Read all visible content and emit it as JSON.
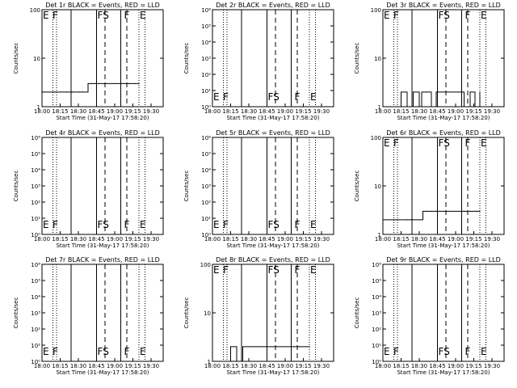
{
  "page": {
    "background": "#ffffff",
    "ink": "#000000",
    "lld_color": "#ff0000"
  },
  "chart_data": [
    {
      "type": "line",
      "scale": "log",
      "title": "Det 1r BLACK = Events, RED = LLD",
      "xlabel": "Start Time (31-May-17 17:58:20)",
      "ylabel": "Counts/sec",
      "ylim": [
        1,
        100
      ],
      "yticks": [
        {
          "v": 1,
          "label": "1"
        },
        {
          "v": 10,
          "label": "10"
        },
        {
          "v": 100,
          "label": "100"
        }
      ],
      "xlim": [
        "18:00",
        "19:40"
      ],
      "xticks": [
        "18:00",
        "18:15",
        "18:30",
        "18:45",
        "19:00",
        "19:15",
        "19:30"
      ],
      "region_labels": [
        {
          "text": "E",
          "t": "18:00"
        },
        {
          "text": "F",
          "t": "18:08"
        },
        {
          "text": "FS",
          "t": "18:45"
        },
        {
          "text": "F",
          "t": "19:07"
        },
        {
          "text": "E",
          "t": "19:20"
        }
      ],
      "series": [
        {
          "color": "#000000",
          "x": [
            "18:00",
            "18:10",
            "18:20",
            "18:25",
            "18:30",
            "18:33",
            "18:38",
            "18:41",
            "18:44",
            "19:07",
            "19:12",
            "19:17",
            "19:20"
          ],
          "y": [
            2,
            2,
            2,
            2,
            2,
            2,
            3,
            3,
            3,
            3,
            3,
            3,
            3
          ]
        }
      ]
    },
    {
      "type": "line",
      "scale": "log",
      "title": "Det 2r BLACK = Events, RED = LLD",
      "xlabel": "Start Time (31-May-17 17:58:20)",
      "ylabel": "Counts/sec",
      "ylim": [
        1,
        1000000
      ],
      "yticks": [
        {
          "v": 1,
          "label": "10⁰"
        },
        {
          "v": 10,
          "label": "10¹"
        },
        {
          "v": 100,
          "label": "10²"
        },
        {
          "v": 1000,
          "label": "10³"
        },
        {
          "v": 10000,
          "label": "10⁴"
        },
        {
          "v": 100000,
          "label": "10⁵"
        },
        {
          "v": 1000000,
          "label": "10⁶"
        }
      ],
      "xlim": [
        "18:00",
        "19:40"
      ],
      "xticks": [
        "18:00",
        "18:15",
        "18:30",
        "18:45",
        "19:00",
        "19:15",
        "19:30"
      ],
      "region_labels": [
        {
          "text": "E",
          "t": "18:00"
        },
        {
          "text": "F",
          "t": "18:08"
        },
        {
          "text": "FS",
          "t": "18:45"
        },
        {
          "text": "F",
          "t": "19:07"
        },
        {
          "text": "E",
          "t": "19:20"
        }
      ],
      "series": []
    },
    {
      "type": "line",
      "scale": "log",
      "title": "Det 3r BLACK = Events, RED = LLD",
      "xlabel": "Start Time (31-May-17 17:58:20)",
      "ylabel": "Counts/sec",
      "ylim": [
        1,
        100
      ],
      "yticks": [
        {
          "v": 1,
          "label": "1"
        },
        {
          "v": 10,
          "label": "10"
        },
        {
          "v": 100,
          "label": "100"
        }
      ],
      "xlim": [
        "18:00",
        "19:40"
      ],
      "xticks": [
        "18:00",
        "18:15",
        "18:30",
        "18:45",
        "19:00",
        "19:15",
        "19:30"
      ],
      "region_labels": [
        {
          "text": "E",
          "t": "18:00"
        },
        {
          "text": "F",
          "t": "18:08"
        },
        {
          "text": "FS",
          "t": "18:45"
        },
        {
          "text": "F",
          "t": "19:07"
        },
        {
          "text": "E",
          "t": "19:20"
        }
      ],
      "series": [
        {
          "color": "#000000",
          "x": [
            "18:10",
            "18:15",
            "18:20",
            "18:25",
            "18:30",
            "18:32",
            "18:36",
            "18:40",
            "18:44",
            "19:07",
            "19:12",
            "19:16",
            "19:20"
          ],
          "y": [
            1,
            2,
            1,
            2,
            1,
            2,
            2,
            1,
            2,
            1,
            2,
            1,
            2
          ]
        }
      ]
    },
    {
      "type": "line",
      "scale": "log",
      "title": "Det 4r BLACK = Events, RED = LLD",
      "xlabel": "Start Time (31-May-17 17:58:20)",
      "ylabel": "Counts/sec",
      "ylim": [
        1,
        1000000
      ],
      "yticks": [
        {
          "v": 1,
          "label": "10⁰"
        },
        {
          "v": 10,
          "label": "10¹"
        },
        {
          "v": 100,
          "label": "10²"
        },
        {
          "v": 1000,
          "label": "10³"
        },
        {
          "v": 10000,
          "label": "10⁴"
        },
        {
          "v": 100000,
          "label": "10⁵"
        },
        {
          "v": 1000000,
          "label": "10⁶"
        }
      ],
      "xlim": [
        "18:00",
        "19:40"
      ],
      "xticks": [
        "18:00",
        "18:15",
        "18:30",
        "18:45",
        "19:00",
        "19:15",
        "19:30"
      ],
      "region_labels": [
        {
          "text": "E",
          "t": "18:00"
        },
        {
          "text": "F",
          "t": "18:08"
        },
        {
          "text": "FS",
          "t": "18:45"
        },
        {
          "text": "F",
          "t": "19:07"
        },
        {
          "text": "E",
          "t": "19:20"
        }
      ],
      "series": []
    },
    {
      "type": "line",
      "scale": "log",
      "title": "Det 5r BLACK = Events, RED = LLD",
      "xlabel": "Start Time (31-May-17 17:58:20)",
      "ylabel": "Counts/sec",
      "ylim": [
        1,
        1000000
      ],
      "yticks": [
        {
          "v": 1,
          "label": "10⁰"
        },
        {
          "v": 10,
          "label": "10¹"
        },
        {
          "v": 100,
          "label": "10²"
        },
        {
          "v": 1000,
          "label": "10³"
        },
        {
          "v": 10000,
          "label": "10⁴"
        },
        {
          "v": 100000,
          "label": "10⁵"
        },
        {
          "v": 1000000,
          "label": "10⁶"
        }
      ],
      "xlim": [
        "18:00",
        "19:40"
      ],
      "xticks": [
        "18:00",
        "18:15",
        "18:30",
        "18:45",
        "19:00",
        "19:15",
        "19:30"
      ],
      "region_labels": [
        {
          "text": "E",
          "t": "18:00"
        },
        {
          "text": "F",
          "t": "18:08"
        },
        {
          "text": "FS",
          "t": "18:45"
        },
        {
          "text": "F",
          "t": "19:07"
        },
        {
          "text": "E",
          "t": "19:20"
        }
      ],
      "series": []
    },
    {
      "type": "line",
      "scale": "log",
      "title": "Det 6r BLACK = Events, RED = LLD",
      "xlabel": "Start Time (31-May-17 17:58:20)",
      "ylabel": "Counts/sec",
      "ylim": [
        1,
        100
      ],
      "yticks": [
        {
          "v": 1,
          "label": "1"
        },
        {
          "v": 10,
          "label": "10"
        },
        {
          "v": 100,
          "label": "100"
        }
      ],
      "xlim": [
        "18:00",
        "19:40"
      ],
      "xticks": [
        "18:00",
        "18:15",
        "18:30",
        "18:45",
        "19:00",
        "19:15",
        "19:30"
      ],
      "region_labels": [
        {
          "text": "E",
          "t": "18:00"
        },
        {
          "text": "F",
          "t": "18:08"
        },
        {
          "text": "FS",
          "t": "18:45"
        },
        {
          "text": "F",
          "t": "19:07"
        },
        {
          "text": "E",
          "t": "19:20"
        }
      ],
      "series": [
        {
          "color": "#000000",
          "x": [
            "18:00",
            "18:10",
            "18:20",
            "18:25",
            "18:30",
            "18:33",
            "18:36",
            "18:40",
            "18:44",
            "19:07",
            "19:12",
            "19:17",
            "19:20"
          ],
          "y": [
            2,
            2,
            2,
            2,
            2,
            3,
            3,
            3,
            3,
            3,
            3,
            3,
            3
          ]
        }
      ]
    },
    {
      "type": "line",
      "scale": "log",
      "title": "Det 7r BLACK = Events, RED = LLD",
      "xlabel": "Start Time (31-May-17 17:58:20)",
      "ylabel": "Counts/sec",
      "ylim": [
        1,
        1000000
      ],
      "yticks": [
        {
          "v": 1,
          "label": "10⁰"
        },
        {
          "v": 10,
          "label": "10¹"
        },
        {
          "v": 100,
          "label": "10²"
        },
        {
          "v": 1000,
          "label": "10³"
        },
        {
          "v": 10000,
          "label": "10⁴"
        },
        {
          "v": 100000,
          "label": "10⁵"
        },
        {
          "v": 1000000,
          "label": "10⁶"
        }
      ],
      "xlim": [
        "18:00",
        "19:40"
      ],
      "xticks": [
        "18:00",
        "18:15",
        "18:30",
        "18:45",
        "19:00",
        "19:15",
        "19:30"
      ],
      "region_labels": [
        {
          "text": "E",
          "t": "18:00"
        },
        {
          "text": "F",
          "t": "18:08"
        },
        {
          "text": "FS",
          "t": "18:45"
        },
        {
          "text": "F",
          "t": "19:07"
        },
        {
          "text": "E",
          "t": "19:20"
        }
      ],
      "series": []
    },
    {
      "type": "line",
      "scale": "log",
      "title": "Det 8r BLACK = Events, RED = LLD",
      "xlabel": "Start Time (31-May-17 17:58:20)",
      "ylabel": "Counts/sec",
      "ylim": [
        1,
        100
      ],
      "yticks": [
        {
          "v": 1,
          "label": "1"
        },
        {
          "v": 10,
          "label": "10"
        },
        {
          "v": 100,
          "label": "100"
        }
      ],
      "xlim": [
        "18:00",
        "19:40"
      ],
      "xticks": [
        "18:00",
        "18:15",
        "18:30",
        "18:45",
        "19:00",
        "19:15",
        "19:30"
      ],
      "region_labels": [
        {
          "text": "E",
          "t": "18:00"
        },
        {
          "text": "F",
          "t": "18:08"
        },
        {
          "text": "FS",
          "t": "18:45"
        },
        {
          "text": "F",
          "t": "19:07"
        },
        {
          "text": "E",
          "t": "19:20"
        }
      ],
      "series": [
        {
          "color": "#000000",
          "x": [
            "18:10",
            "18:15",
            "18:20",
            "18:25",
            "18:30",
            "18:33",
            "18:37",
            "18:41",
            "18:44",
            "19:07",
            "19:12",
            "19:17",
            "19:20"
          ],
          "y": [
            1,
            2,
            1,
            2,
            2,
            2,
            2,
            2,
            2,
            2,
            2,
            2,
            2
          ]
        }
      ]
    },
    {
      "type": "line",
      "scale": "log",
      "title": "Det 9r BLACK = Events, RED = LLD",
      "xlabel": "Start Time (31-May-17 17:58:20)",
      "ylabel": "Counts/sec",
      "ylim": [
        1,
        1000000
      ],
      "yticks": [
        {
          "v": 1,
          "label": "10⁰"
        },
        {
          "v": 10,
          "label": "10¹"
        },
        {
          "v": 100,
          "label": "10²"
        },
        {
          "v": 1000,
          "label": "10³"
        },
        {
          "v": 10000,
          "label": "10⁴"
        },
        {
          "v": 100000,
          "label": "10⁵"
        },
        {
          "v": 1000000,
          "label": "10⁶"
        }
      ],
      "xlim": [
        "18:00",
        "19:40"
      ],
      "xticks": [
        "18:00",
        "18:15",
        "18:30",
        "18:45",
        "19:00",
        "19:15",
        "19:30"
      ],
      "region_labels": [
        {
          "text": "E",
          "t": "18:00"
        },
        {
          "text": "F",
          "t": "18:08"
        },
        {
          "text": "FS",
          "t": "18:45"
        },
        {
          "text": "F",
          "t": "19:07"
        },
        {
          "text": "E",
          "t": "19:20"
        }
      ],
      "series": []
    }
  ],
  "boundaries": {
    "dotted": [
      "18:09",
      "18:12",
      "19:20",
      "19:25"
    ],
    "solid": [
      "18:24",
      "18:45",
      "19:05"
    ],
    "dashed": [
      "18:52",
      "19:10"
    ]
  }
}
